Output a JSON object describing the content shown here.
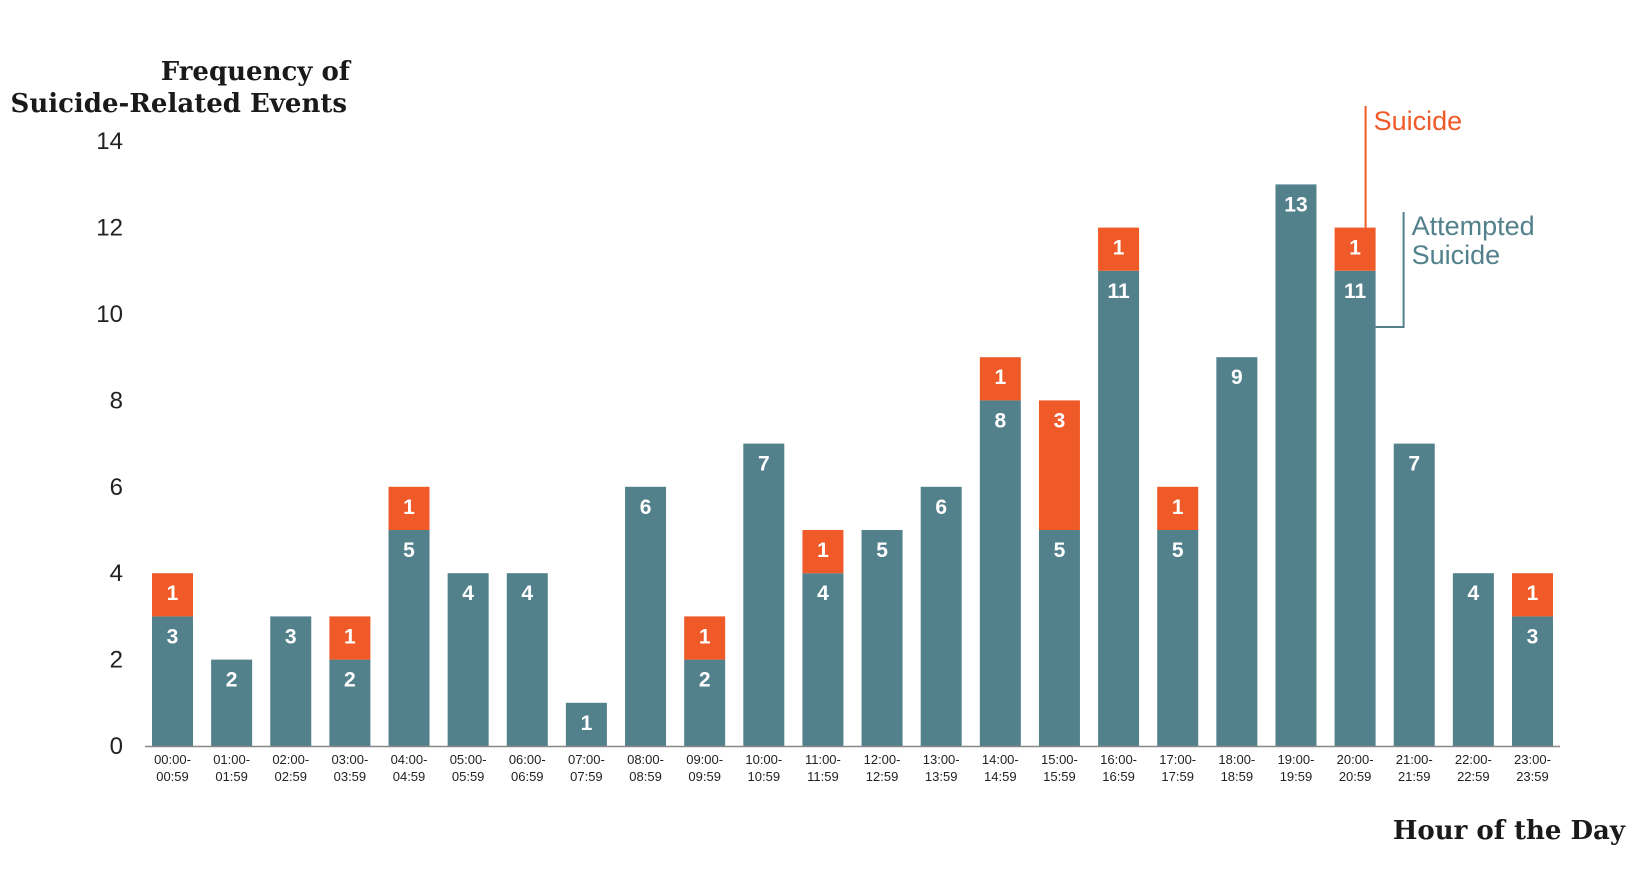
{
  "chart_data": {
    "type": "bar",
    "stacked": true,
    "title": "",
    "ylabel": [
      "Frequency of",
      "Suicide-Related Events"
    ],
    "xlabel": "Hour of the Day",
    "ylim": [
      0,
      14
    ],
    "yticks": [
      0,
      2,
      4,
      6,
      8,
      10,
      12,
      14
    ],
    "grid": false,
    "legend_placement": "top-right, inline labels",
    "categories": [
      [
        "00:00-",
        "00:59"
      ],
      [
        "01:00-",
        "01:59"
      ],
      [
        "02:00-",
        "02:59"
      ],
      [
        "03:00-",
        "03:59"
      ],
      [
        "04:00-",
        "04:59"
      ],
      [
        "05:00-",
        "05:59"
      ],
      [
        "06:00-",
        "06:59"
      ],
      [
        "07:00-",
        "07:59"
      ],
      [
        "08:00-",
        "08:59"
      ],
      [
        "09:00-",
        "09:59"
      ],
      [
        "10:00-",
        "10:59"
      ],
      [
        "11:00-",
        "11:59"
      ],
      [
        "12:00-",
        "12:59"
      ],
      [
        "13:00-",
        "13:59"
      ],
      [
        "14:00-",
        "14:59"
      ],
      [
        "15:00-",
        "15:59"
      ],
      [
        "16:00-",
        "16:59"
      ],
      [
        "17:00-",
        "17:59"
      ],
      [
        "18:00-",
        "18:59"
      ],
      [
        "19:00-",
        "19:59"
      ],
      [
        "20:00-",
        "20:59"
      ],
      [
        "21:00-",
        "21:59"
      ],
      [
        "22:00-",
        "22:59"
      ],
      [
        "23:00-",
        "23:59"
      ]
    ],
    "series": [
      {
        "name": [
          "Attempted",
          "Suicide"
        ],
        "color": "#52818c",
        "values": [
          3,
          2,
          3,
          2,
          5,
          4,
          4,
          1,
          6,
          2,
          7,
          4,
          5,
          6,
          8,
          5,
          11,
          5,
          9,
          13,
          11,
          7,
          4,
          3
        ]
      },
      {
        "name": [
          "Suicide"
        ],
        "color": "#f05a28",
        "values": [
          1,
          0,
          0,
          1,
          1,
          0,
          0,
          0,
          0,
          1,
          0,
          1,
          0,
          0,
          1,
          3,
          1,
          1,
          0,
          0,
          1,
          0,
          0,
          1
        ]
      }
    ]
  }
}
